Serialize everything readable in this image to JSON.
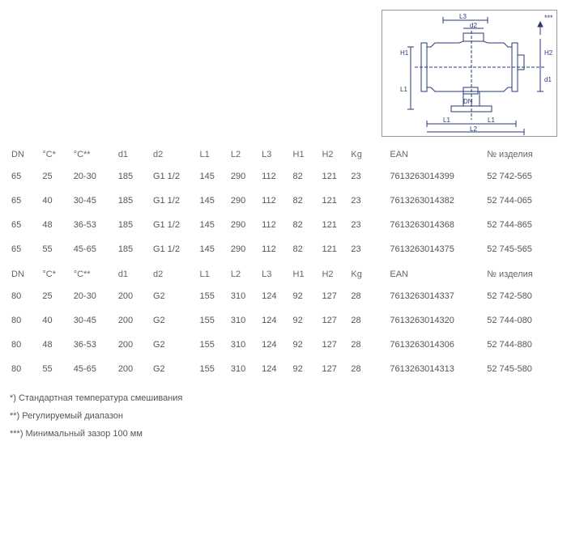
{
  "diagram": {
    "labels": [
      "L3",
      "d2",
      "***",
      "H1",
      "H2",
      "d1",
      "L1",
      "DN",
      "L1",
      "L1",
      "L2"
    ],
    "stroke": "#2a3a7a"
  },
  "table1": {
    "headers": [
      "DN",
      "°C*",
      "°C**",
      "d1",
      "d2",
      "L1",
      "L2",
      "L3",
      "H1",
      "H2",
      "Kg",
      "EAN",
      "№ изделия"
    ],
    "rows": [
      [
        "65",
        "25",
        "20-30",
        "185",
        "G1 1/2",
        "145",
        "290",
        "112",
        "82",
        "121",
        "23",
        "7613263014399",
        "52 742-565"
      ],
      [
        "65",
        "40",
        "30-45",
        "185",
        "G1 1/2",
        "145",
        "290",
        "112",
        "82",
        "121",
        "23",
        "7613263014382",
        "52 744-065"
      ],
      [
        "65",
        "48",
        "36-53",
        "185",
        "G1 1/2",
        "145",
        "290",
        "112",
        "82",
        "121",
        "23",
        "7613263014368",
        "52 744-865"
      ],
      [
        "65",
        "55",
        "45-65",
        "185",
        "G1 1/2",
        "145",
        "290",
        "112",
        "82",
        "121",
        "23",
        "7613263014375",
        "52 745-565"
      ]
    ]
  },
  "table2": {
    "headers": [
      "DN",
      "°C*",
      "°C**",
      "d1",
      "d2",
      "L1",
      "L2",
      "L3",
      "H1",
      "H2",
      "Kg",
      "EAN",
      "№ изделия"
    ],
    "rows": [
      [
        "80",
        "25",
        "20-30",
        "200",
        "G2",
        "155",
        "310",
        "124",
        "92",
        "127",
        "28",
        "7613263014337",
        "52 742-580"
      ],
      [
        "80",
        "40",
        "30-45",
        "200",
        "G2",
        "155",
        "310",
        "124",
        "92",
        "127",
        "28",
        "7613263014320",
        "52 744-080"
      ],
      [
        "80",
        "48",
        "36-53",
        "200",
        "G2",
        "155",
        "310",
        "124",
        "92",
        "127",
        "28",
        "7613263014306",
        "52 744-880"
      ],
      [
        "80",
        "55",
        "45-65",
        "200",
        "G2",
        "155",
        "310",
        "124",
        "92",
        "127",
        "28",
        "7613263014313",
        "52 745-580"
      ]
    ]
  },
  "footnotes": [
    "*) Стандартная температура смешивания",
    "**) Регулируемый диапазон",
    "***) Минимальный зазор 100 мм"
  ]
}
